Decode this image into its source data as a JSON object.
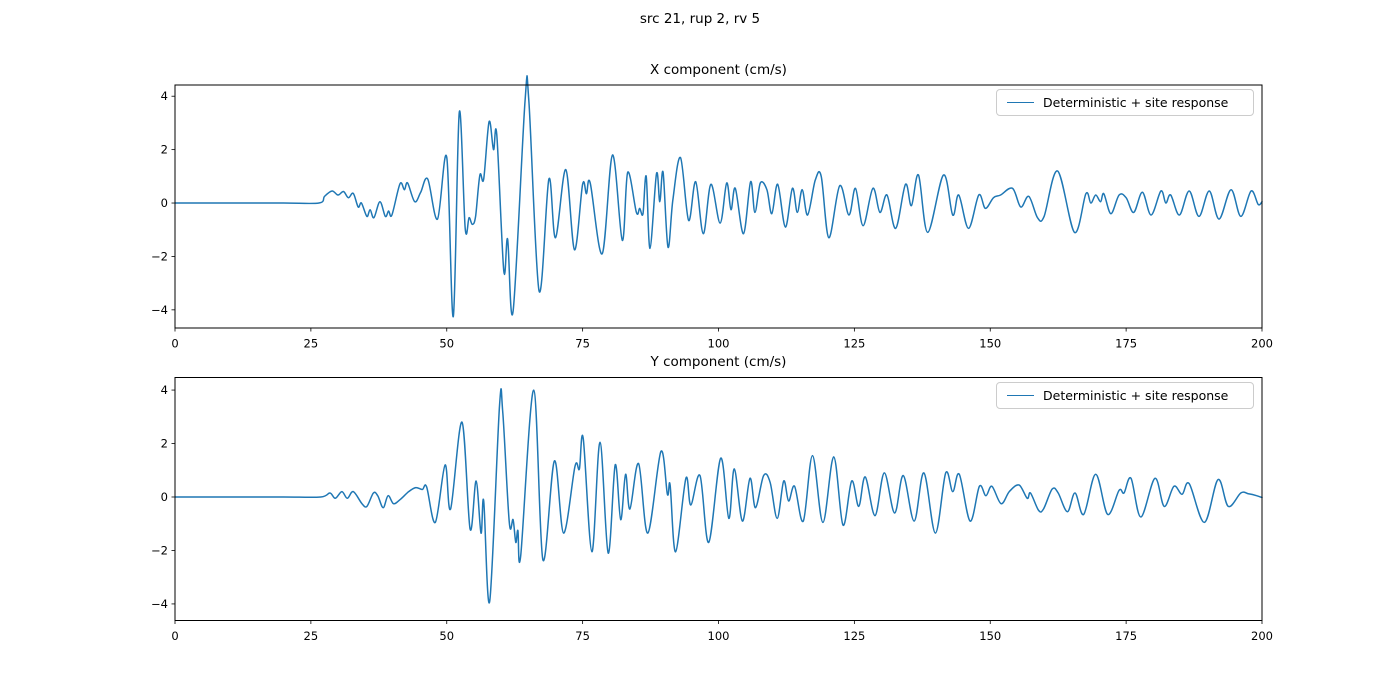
{
  "figure": {
    "suptitle": "src 21, rup 2, rv 5",
    "background": "#ffffff",
    "axis_color": "#000000"
  },
  "chart_data": [
    {
      "type": "line",
      "title": "X component (cm/s)",
      "xlabel": "",
      "ylabel": "",
      "grid": false,
      "legend_position": "upper right",
      "xlim": [
        0,
        200
      ],
      "ylim": [
        -4.68,
        4.42
      ],
      "xticks": [
        0,
        25,
        50,
        75,
        100,
        125,
        150,
        175,
        200
      ],
      "yticks": [
        -4,
        -2,
        0,
        2,
        4
      ],
      "series": [
        {
          "name": "Deterministic + site response",
          "color": "#1f77b4",
          "points": [
            [
              0,
              0
            ],
            [
              10,
              0
            ],
            [
              20,
              0
            ],
            [
              26.5,
              0
            ],
            [
              27.5,
              0.25
            ],
            [
              28.9,
              0.45
            ],
            [
              30,
              0.3
            ],
            [
              31,
              0.43
            ],
            [
              31.9,
              0.2
            ],
            [
              32.8,
              0.36
            ],
            [
              33.7,
              -0.15
            ],
            [
              34.3,
              0
            ],
            [
              35.3,
              -0.5
            ],
            [
              35.9,
              -0.25
            ],
            [
              36.6,
              -0.55
            ],
            [
              37.7,
              0.05
            ],
            [
              38.7,
              -0.5
            ],
            [
              39.3,
              -0.3
            ],
            [
              39.9,
              -0.45
            ],
            [
              41.4,
              0.72
            ],
            [
              42.2,
              0.5
            ],
            [
              42.8,
              0.75
            ],
            [
              44.1,
              0.05
            ],
            [
              45.2,
              0.4
            ],
            [
              46.5,
              0.9
            ],
            [
              48.3,
              -0.6
            ],
            [
              50,
              1.7
            ],
            [
              51.2,
              -4.25
            ],
            [
              52.3,
              3.4
            ],
            [
              53.4,
              -0.95
            ],
            [
              54.1,
              -0.55
            ],
            [
              54.7,
              -0.8
            ],
            [
              55.3,
              -0.5
            ],
            [
              56.1,
              1.05
            ],
            [
              56.8,
              0.9
            ],
            [
              57.8,
              3.05
            ],
            [
              58.6,
              2.0
            ],
            [
              59.2,
              2.55
            ],
            [
              60.5,
              -2.55
            ],
            [
              61.2,
              -1.35
            ],
            [
              62.2,
              -4.05
            ],
            [
              64.4,
              3.8
            ],
            [
              65.1,
              3.85
            ],
            [
              67,
              -3.3
            ],
            [
              68.8,
              0.9
            ],
            [
              70,
              -1.3
            ],
            [
              71.9,
              1.25
            ],
            [
              73.5,
              -1.75
            ],
            [
              75,
              0.7
            ],
            [
              75.7,
              0.35
            ],
            [
              76.4,
              0.75
            ],
            [
              78.6,
              -1.9
            ],
            [
              80.5,
              1.8
            ],
            [
              82.3,
              -1.4
            ],
            [
              83.3,
              1.15
            ],
            [
              84.9,
              -0.35
            ],
            [
              85.5,
              -0.2
            ],
            [
              86.1,
              -0.4
            ],
            [
              86.7,
              1.0
            ],
            [
              87.4,
              -1.7
            ],
            [
              88.6,
              1.1
            ],
            [
              89.2,
              0.05
            ],
            [
              89.8,
              1.15
            ],
            [
              90.7,
              -1.65
            ],
            [
              91.6,
              0.1
            ],
            [
              93,
              1.7
            ],
            [
              94.5,
              -0.65
            ],
            [
              95.8,
              0.8
            ],
            [
              97.2,
              -1.15
            ],
            [
              98.6,
              0.7
            ],
            [
              100.3,
              -0.75
            ],
            [
              101.5,
              0.75
            ],
            [
              102.3,
              -0.25
            ],
            [
              103.1,
              0.55
            ],
            [
              104.6,
              -1.15
            ],
            [
              105.9,
              0.8
            ],
            [
              106.7,
              -0.35
            ],
            [
              107.7,
              0.75
            ],
            [
              108.9,
              0.5
            ],
            [
              109.8,
              -0.4
            ],
            [
              110.9,
              0.7
            ],
            [
              112.3,
              -0.9
            ],
            [
              113.6,
              0.55
            ],
            [
              114.5,
              -0.35
            ],
            [
              115.4,
              0.5
            ],
            [
              116.4,
              -0.45
            ],
            [
              117.8,
              0.85
            ],
            [
              118.9,
              1.0
            ],
            [
              120.3,
              -1.3
            ],
            [
              122.3,
              0.65
            ],
            [
              124,
              -0.45
            ],
            [
              125.2,
              0.55
            ],
            [
              126.6,
              -0.85
            ],
            [
              128.4,
              0.55
            ],
            [
              129.7,
              -0.35
            ],
            [
              131,
              0.3
            ],
            [
              132.6,
              -0.95
            ],
            [
              134.4,
              0.7
            ],
            [
              135.5,
              -0.1
            ],
            [
              136.8,
              1.05
            ],
            [
              138.5,
              -1.1
            ],
            [
              141.4,
              1.05
            ],
            [
              143.1,
              -0.45
            ],
            [
              144.2,
              0.3
            ],
            [
              146,
              -0.95
            ],
            [
              147.9,
              0.3
            ],
            [
              149.1,
              -0.2
            ],
            [
              150.6,
              0.2
            ],
            [
              151.9,
              0.3
            ],
            [
              154.1,
              0.55
            ],
            [
              155.6,
              -0.15
            ],
            [
              157.1,
              0.25
            ],
            [
              158.7,
              -0.55
            ],
            [
              159.9,
              -0.5
            ],
            [
              162.4,
              1.2
            ],
            [
              165.5,
              -1.1
            ],
            [
              167.6,
              0.35
            ],
            [
              168.5,
              0
            ],
            [
              169.4,
              0.3
            ],
            [
              170.3,
              0.05
            ],
            [
              170.9,
              0.35
            ],
            [
              172.2,
              -0.4
            ],
            [
              173.7,
              0.3
            ],
            [
              175,
              0.2
            ],
            [
              176.4,
              -0.35
            ],
            [
              178,
              0.4
            ],
            [
              179.6,
              -0.45
            ],
            [
              181.4,
              0.45
            ],
            [
              182.3,
              0
            ],
            [
              183.2,
              0.3
            ],
            [
              184.8,
              -0.45
            ],
            [
              186.6,
              0.45
            ],
            [
              188.4,
              -0.5
            ],
            [
              190.3,
              0.45
            ],
            [
              192.1,
              -0.6
            ],
            [
              194.3,
              0.5
            ],
            [
              196.1,
              -0.5
            ],
            [
              198,
              0.45
            ],
            [
              199.3,
              -0.05
            ],
            [
              200,
              0.05
            ]
          ]
        }
      ]
    },
    {
      "type": "line",
      "title": "Y component (cm/s)",
      "xlabel": "",
      "ylabel": "",
      "grid": false,
      "legend_position": "upper right",
      "xlim": [
        0,
        200
      ],
      "ylim": [
        -4.62,
        4.47
      ],
      "xticks": [
        0,
        25,
        50,
        75,
        100,
        125,
        150,
        175,
        200
      ],
      "yticks": [
        -4,
        -2,
        0,
        2,
        4
      ],
      "series": [
        {
          "name": "Deterministic + site response",
          "color": "#1f77b4",
          "points": [
            [
              0,
              0
            ],
            [
              10,
              0
            ],
            [
              20,
              0
            ],
            [
              26.8,
              0
            ],
            [
              28.5,
              0.15
            ],
            [
              29.5,
              -0.05
            ],
            [
              30.7,
              0.2
            ],
            [
              31.7,
              -0.05
            ],
            [
              32.8,
              0.2
            ],
            [
              34.4,
              -0.25
            ],
            [
              35.3,
              -0.35
            ],
            [
              36.5,
              0.15
            ],
            [
              37.3,
              0.05
            ],
            [
              38.3,
              -0.4
            ],
            [
              39.2,
              0.05
            ],
            [
              40.2,
              -0.25
            ],
            [
              41.4,
              -0.1
            ],
            [
              43,
              0.2
            ],
            [
              44.3,
              0.35
            ],
            [
              45.5,
              0.28
            ],
            [
              46.3,
              0.38
            ],
            [
              47.9,
              -0.95
            ],
            [
              49.7,
              1.2
            ],
            [
              50.7,
              -0.45
            ],
            [
              52.8,
              2.8
            ],
            [
              54.3,
              -1.2
            ],
            [
              55.4,
              0.6
            ],
            [
              56.3,
              -1.35
            ],
            [
              56.8,
              -0.15
            ],
            [
              57.9,
              -3.9
            ],
            [
              59.7,
              3.4
            ],
            [
              60.3,
              3.2
            ],
            [
              61.5,
              -0.95
            ],
            [
              62.2,
              -0.85
            ],
            [
              62.7,
              -1.7
            ],
            [
              63.1,
              -1.25
            ],
            [
              63.6,
              -2.2
            ],
            [
              66,
              4.0
            ],
            [
              67.7,
              -2.35
            ],
            [
              69.8,
              1.35
            ],
            [
              71.5,
              -1.35
            ],
            [
              73.6,
              1.15
            ],
            [
              74.4,
              1.05
            ],
            [
              75.1,
              2.2
            ],
            [
              76.7,
              -2.05
            ],
            [
              78.2,
              2.05
            ],
            [
              79.7,
              -2.1
            ],
            [
              81,
              1.2
            ],
            [
              82,
              -0.85
            ],
            [
              82.9,
              0.85
            ],
            [
              83.7,
              -0.45
            ],
            [
              85.3,
              1.25
            ],
            [
              87,
              -1.35
            ],
            [
              89.4,
              1.7
            ],
            [
              90.6,
              0.1
            ],
            [
              91.1,
              0.45
            ],
            [
              92.1,
              -2.05
            ],
            [
              94,
              0.7
            ],
            [
              94.9,
              -0.3
            ],
            [
              96.6,
              0.8
            ],
            [
              98.2,
              -1.7
            ],
            [
              100.4,
              1.45
            ],
            [
              101.9,
              -0.8
            ],
            [
              102.9,
              1.05
            ],
            [
              104.4,
              -0.9
            ],
            [
              105.8,
              0.7
            ],
            [
              106.8,
              -0.4
            ],
            [
              108.3,
              0.8
            ],
            [
              109.5,
              0.55
            ],
            [
              110.8,
              -0.8
            ],
            [
              112,
              0.6
            ],
            [
              112.9,
              -0.15
            ],
            [
              114,
              0.4
            ],
            [
              115.6,
              -0.9
            ],
            [
              117.3,
              1.55
            ],
            [
              119.2,
              -0.95
            ],
            [
              121.2,
              1.5
            ],
            [
              122.9,
              -1.05
            ],
            [
              124.5,
              0.6
            ],
            [
              125.8,
              -0.35
            ],
            [
              127,
              0.75
            ],
            [
              128.8,
              -0.7
            ],
            [
              130.5,
              0.9
            ],
            [
              132.4,
              -0.6
            ],
            [
              134,
              0.8
            ],
            [
              136,
              -0.9
            ],
            [
              137.8,
              0.9
            ],
            [
              139.9,
              -1.35
            ],
            [
              141.8,
              0.9
            ],
            [
              143.1,
              0.2
            ],
            [
              144.3,
              0.85
            ],
            [
              146.3,
              -0.9
            ],
            [
              148,
              0.4
            ],
            [
              149.2,
              0.05
            ],
            [
              150.3,
              0.4
            ],
            [
              152,
              -0.25
            ],
            [
              153.5,
              0.2
            ],
            [
              155.3,
              0.45
            ],
            [
              156.8,
              -0.05
            ],
            [
              157.4,
              0.15
            ],
            [
              158.9,
              -0.5
            ],
            [
              159.8,
              -0.45
            ],
            [
              161.4,
              0.3
            ],
            [
              162.5,
              0.15
            ],
            [
              164.2,
              -0.55
            ],
            [
              165.6,
              0.15
            ],
            [
              167.2,
              -0.65
            ],
            [
              169.4,
              0.85
            ],
            [
              171.6,
              -0.65
            ],
            [
              173.7,
              0.25
            ],
            [
              174.6,
              0.15
            ],
            [
              175.9,
              0.7
            ],
            [
              177.7,
              -0.75
            ],
            [
              180.3,
              0.7
            ],
            [
              182,
              -0.35
            ],
            [
              183.8,
              0.4
            ],
            [
              185.3,
              0.1
            ],
            [
              186.6,
              0.5
            ],
            [
              189.4,
              -0.95
            ],
            [
              191.9,
              0.65
            ],
            [
              193.8,
              -0.35
            ],
            [
              196.1,
              0.15
            ],
            [
              197.5,
              0.12
            ],
            [
              199,
              0.05
            ],
            [
              200,
              -0.02
            ]
          ]
        }
      ]
    }
  ]
}
